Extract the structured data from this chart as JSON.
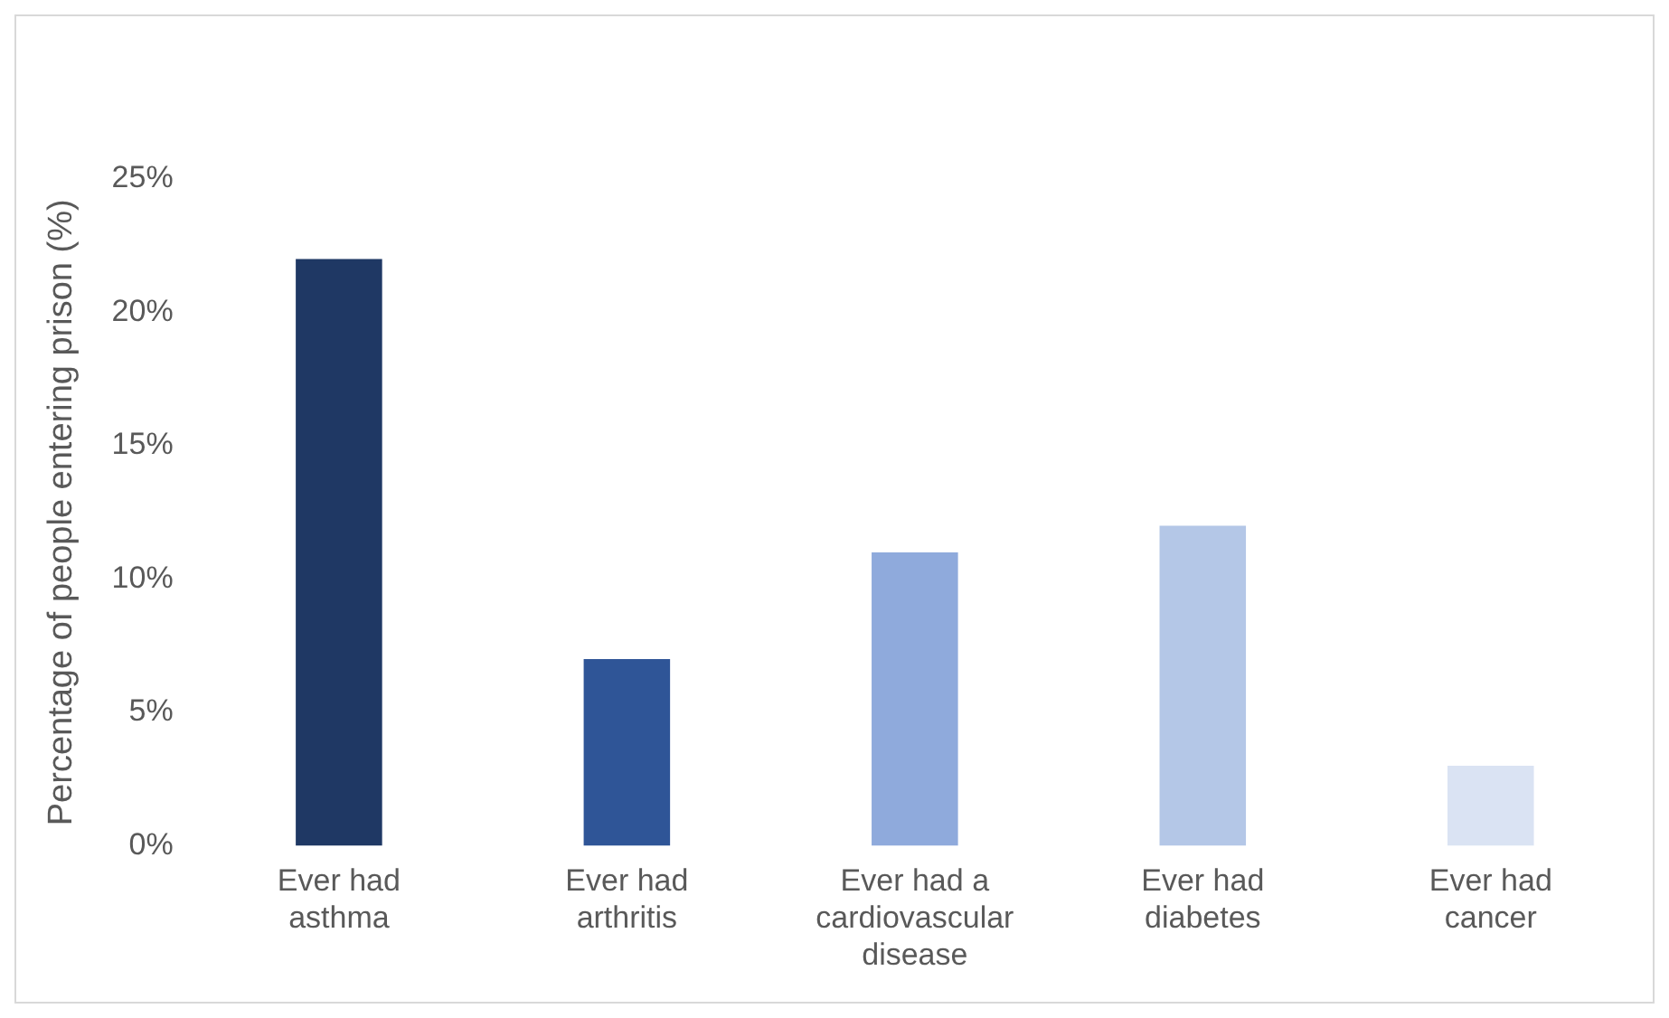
{
  "chart_data": {
    "type": "bar",
    "ylabel": "Percentage of people entering prison (%)",
    "categories": [
      "Ever had asthma",
      "Ever had arthritis",
      "Ever had a cardiovascular disease",
      "Ever had diabetes",
      "Ever had cancer"
    ],
    "values": [
      22,
      7,
      11,
      12,
      3
    ],
    "colors": [
      "#1f3864",
      "#2f5597",
      "#8faadc",
      "#b4c7e7",
      "#dae3f3"
    ],
    "ylim": [
      0,
      25
    ],
    "yticks": [
      {
        "value": 0,
        "label": "0%"
      },
      {
        "value": 5,
        "label": "5%"
      },
      {
        "value": 10,
        "label": "10%"
      },
      {
        "value": 15,
        "label": "15%"
      },
      {
        "value": 20,
        "label": "20%"
      },
      {
        "value": 25,
        "label": "25%"
      }
    ],
    "grid": false,
    "legend": false
  }
}
